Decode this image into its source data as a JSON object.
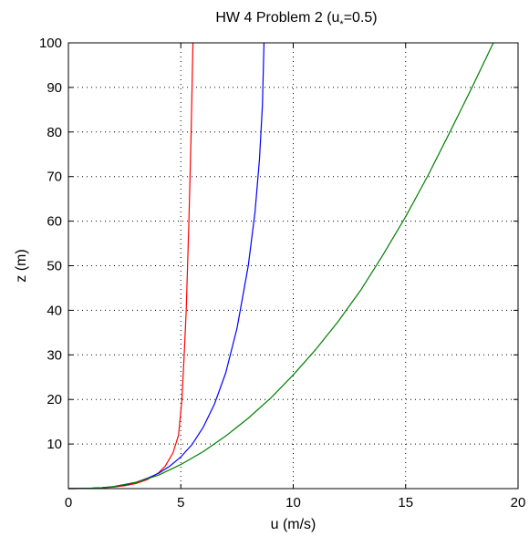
{
  "chart_data": {
    "type": "line",
    "title": "HW 4 Problem 2 (u",
    "title_sub": "*",
    "title_suffix": "=0.5)",
    "xlabel": "u (m/s)",
    "ylabel": "z (m)",
    "xlim": [
      0,
      20
    ],
    "ylim": [
      0,
      100
    ],
    "xticks": [
      0,
      5,
      10,
      15,
      20
    ],
    "yticks": [
      10,
      20,
      30,
      40,
      50,
      60,
      70,
      80,
      90,
      100
    ],
    "grid": "dotted",
    "series": [
      {
        "color": "#ff0000",
        "points": [
          [
            0,
            0
          ],
          [
            0.5,
            0.02
          ],
          [
            1.0,
            0.07
          ],
          [
            1.5,
            0.17
          ],
          [
            2.0,
            0.35
          ],
          [
            2.5,
            0.65
          ],
          [
            3.0,
            1.15
          ],
          [
            3.5,
            2.0
          ],
          [
            4.0,
            3.5
          ],
          [
            4.3,
            5
          ],
          [
            4.65,
            8
          ],
          [
            4.9,
            12
          ],
          [
            5.05,
            20
          ],
          [
            5.15,
            30
          ],
          [
            5.24,
            40
          ],
          [
            5.3,
            50
          ],
          [
            5.36,
            60
          ],
          [
            5.41,
            70
          ],
          [
            5.46,
            80
          ],
          [
            5.5,
            90
          ],
          [
            5.54,
            100
          ]
        ]
      },
      {
        "color": "#0000ff",
        "points": [
          [
            0,
            0
          ],
          [
            0.5,
            0.02
          ],
          [
            1.0,
            0.07
          ],
          [
            1.5,
            0.2
          ],
          [
            2.0,
            0.45
          ],
          [
            2.5,
            0.8
          ],
          [
            3.0,
            1.4
          ],
          [
            3.5,
            2.3
          ],
          [
            4.0,
            3.4
          ],
          [
            4.5,
            5
          ],
          [
            5.0,
            7.1
          ],
          [
            5.5,
            9.9
          ],
          [
            6.0,
            13.8
          ],
          [
            6.5,
            19
          ],
          [
            7.0,
            26
          ],
          [
            7.5,
            36
          ],
          [
            8.0,
            50
          ],
          [
            8.3,
            62
          ],
          [
            8.5,
            74
          ],
          [
            8.63,
            86
          ],
          [
            8.7,
            100
          ]
        ]
      },
      {
        "color": "#008000",
        "points": [
          [
            0,
            0
          ],
          [
            0.5,
            0.02
          ],
          [
            1.0,
            0.07
          ],
          [
            1.5,
            0.2
          ],
          [
            2.0,
            0.45
          ],
          [
            3.0,
            1.4
          ],
          [
            4.0,
            3.0
          ],
          [
            5.0,
            5.4
          ],
          [
            6.0,
            8.3
          ],
          [
            7.0,
            11.8
          ],
          [
            8.0,
            15.8
          ],
          [
            9.0,
            20.3
          ],
          [
            10.0,
            25.5
          ],
          [
            11.0,
            31.2
          ],
          [
            12.0,
            37.5
          ],
          [
            13.0,
            44.5
          ],
          [
            14.0,
            52.5
          ],
          [
            15.0,
            61
          ],
          [
            16.0,
            70.3
          ],
          [
            17.0,
            80.3
          ],
          [
            18.0,
            90.5
          ],
          [
            18.9,
            100
          ]
        ]
      }
    ]
  }
}
